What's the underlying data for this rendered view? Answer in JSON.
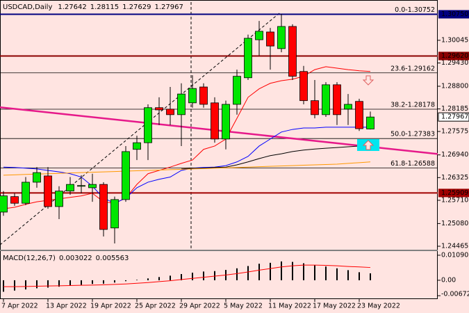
{
  "chart_data": [
    {
      "type": "candlestick",
      "title": "USDCAD,Daily",
      "categories": [
        "7 Apr 2022",
        null,
        null,
        null,
        "13 Apr 2022",
        null,
        null,
        null,
        "19 Apr 2022",
        null,
        null,
        null,
        "25 Apr 2022",
        null,
        null,
        null,
        "29 Apr 2022",
        null,
        null,
        null,
        "5 May 2022",
        null,
        null,
        null,
        "11 May 2022",
        null,
        null,
        null,
        "17 May 2022",
        null,
        null,
        null,
        "23 May 2022",
        null
      ],
      "open": [
        1.2539,
        1.2581,
        1.2563,
        1.262,
        1.2637,
        1.2554,
        1.2596,
        1.2609,
        1.2605,
        1.2614,
        1.2496,
        1.2573,
        1.2709,
        1.2727,
        1.2822,
        1.2818,
        1.2803,
        1.2835,
        1.2878,
        1.2835,
        1.2737,
        1.2831,
        1.2903,
        1.3006,
        1.3027,
        1.2982,
        1.3042,
        1.292,
        1.2841,
        1.2803,
        1.2884,
        1.2818,
        1.2839,
        1.27642
      ],
      "high": [
        1.2596,
        1.259,
        1.2634,
        1.2661,
        1.2661,
        1.2609,
        1.2634,
        1.2639,
        1.2643,
        1.262,
        1.2581,
        1.2718,
        1.2746,
        1.2831,
        1.285,
        1.2878,
        1.2888,
        1.291,
        1.2888,
        1.285,
        1.2841,
        1.2925,
        1.302,
        1.3057,
        1.3038,
        1.3076,
        1.3048,
        1.2935,
        1.2897,
        1.2891,
        1.2891,
        1.2859,
        1.2846,
        1.28115
      ],
      "low": [
        1.2529,
        1.2556,
        1.2558,
        1.2605,
        1.2548,
        1.252,
        1.2586,
        1.259,
        1.2567,
        1.2473,
        1.2454,
        1.2567,
        1.268,
        1.268,
        1.2775,
        1.2775,
        1.2718,
        1.2822,
        1.2822,
        1.2727,
        1.2709,
        1.2803,
        1.2897,
        1.2963,
        1.2925,
        1.2972,
        1.2897,
        1.2831,
        1.2793,
        1.2797,
        1.2775,
        1.2775,
        1.2759,
        1.27629
      ],
      "close": [
        1.2583,
        1.2563,
        1.262,
        1.2646,
        1.2554,
        1.2596,
        1.2614,
        1.2611,
        1.2614,
        1.2492,
        1.2573,
        1.2703,
        1.2727,
        1.2822,
        1.2816,
        1.2803,
        1.2859,
        1.2874,
        1.2831,
        1.2737,
        1.2831,
        1.2907,
        1.301,
        1.3029,
        1.2989,
        1.3042,
        1.2907,
        1.2841,
        1.2803,
        1.2884,
        1.2803,
        1.2831,
        1.2765,
        1.27967
      ],
      "up_color": "#00e600",
      "down_color": "#ff0000",
      "lines": [
        {
          "color": "#ff0000",
          "values": [
            1.2548,
            1.2552,
            1.256,
            1.2567,
            1.2571,
            1.2575,
            1.2579,
            1.2583,
            1.259,
            1.2567,
            1.2563,
            1.2577,
            1.2614,
            1.2643,
            1.2652,
            1.2661,
            1.2671,
            1.268,
            1.2709,
            1.2718,
            1.2737,
            1.2793,
            1.285,
            1.2873,
            1.2888,
            1.2895,
            1.2899,
            1.2907,
            1.2925,
            1.2933,
            1.2929,
            1.2925,
            1.2922,
            1.292
          ]
        },
        {
          "color": "#0000ff",
          "values": [
            1.2661,
            1.266,
            1.2658,
            1.2656,
            1.2652,
            1.2648,
            1.2643,
            1.2634,
            1.2609,
            1.2577,
            1.2563,
            1.2577,
            1.2605,
            1.262,
            1.2628,
            1.2634,
            1.2652,
            1.2658,
            1.266,
            1.2661,
            1.2665,
            1.2675,
            1.269,
            1.2718,
            1.2737,
            1.2756,
            1.2763,
            1.2767,
            1.2767,
            1.2769,
            1.2769,
            1.2769,
            1.2769,
            1.2769
          ]
        },
        {
          "color": "#000000",
          "values": [
            null,
            null,
            null,
            null,
            null,
            null,
            null,
            null,
            null,
            null,
            null,
            null,
            null,
            null,
            null,
            null,
            1.2656,
            1.2658,
            1.2658,
            1.266,
            1.2661,
            1.2667,
            1.2675,
            1.2684,
            1.2692,
            1.2697,
            1.2703,
            1.2707,
            1.271,
            1.2712,
            1.2714,
            1.2716,
            1.2718,
            1.2718
          ]
        },
        {
          "color": "#ff9900",
          "values": [
            1.2639,
            1.264,
            1.2641,
            1.2642,
            1.2643,
            1.2644,
            1.2645,
            1.2646,
            1.2647,
            1.2648,
            1.2649,
            1.265,
            1.2651,
            1.2652,
            1.2653,
            1.2654,
            1.2655,
            1.2656,
            1.2657,
            1.2658,
            1.2659,
            1.266,
            1.2661,
            1.2662,
            1.2663,
            1.2664,
            1.2665,
            1.2666,
            1.2667,
            1.2668,
            1.2669,
            1.2671,
            1.2673,
            1.2675
          ]
        }
      ],
      "trendline": {
        "color": "#e6198a",
        "from": 1.2822,
        "to": 1.2716
      },
      "levels": [
        {
          "value": 1.3075,
          "label": "1.30750",
          "color": "#000080"
        },
        {
          "value": 1.2962,
          "label": "1.29620",
          "color": "#8b0000"
        },
        {
          "value": 1.25909,
          "color": "#a00000"
        }
      ],
      "fib_levels": [
        {
          "value": 1.30752,
          "label": "0.0-1.30752"
        },
        {
          "value": 1.29162,
          "label": "23.6-1.29162"
        },
        {
          "value": 1.28178,
          "label": "38.2-1.28178"
        },
        {
          "value": 1.27383,
          "label": "50.0-1.27383"
        },
        {
          "value": 1.26588,
          "label": "61.8-1.26588"
        }
      ],
      "ylim": [
        1.2439,
        1.3108
      ],
      "yticks": [
        {
          "value": 1.30045,
          "label": "1.30045"
        },
        {
          "value": 1.2943,
          "label": "1.29430"
        },
        {
          "value": 1.288,
          "label": "1.28800"
        },
        1.28185,
        1.27575,
        {
          "value": 1.2694,
          "label": "1.26940"
        },
        1.26325,
        {
          "value": 1.2571,
          "label": "1.25710"
        },
        {
          "value": 1.2508,
          "label": "1.25080"
        },
        1.24465
      ]
    },
    {
      "type": "macd",
      "title": "MACD(12,26,7)",
      "series": [
        {
          "color": "#000000",
          "values": [
            -0.005,
            -0.0045,
            -0.004,
            -0.0035,
            -0.0032,
            -0.0028,
            -0.0024,
            -0.002,
            -0.0016,
            -0.0015,
            -0.001,
            -0.0004,
            0.0002,
            0.0008,
            0.0014,
            0.002,
            0.0027,
            0.0033,
            0.0038,
            0.004,
            0.0045,
            0.0052,
            0.0062,
            0.0072,
            0.0076,
            0.0082,
            0.008,
            0.0074,
            0.0066,
            0.006,
            0.0052,
            0.0044,
            0.0035,
            0.003022
          ]
        },
        {
          "color": "#ff0000",
          "values": [
            -0.0028,
            -0.0028,
            -0.0027,
            -0.0026,
            -0.0025,
            -0.0024,
            -0.0023,
            -0.0022,
            -0.0021,
            -0.002,
            -0.0018,
            -0.0016,
            -0.0013,
            -0.001,
            -0.0006,
            -0.0002,
            0.0003,
            0.0008,
            0.0013,
            0.0018,
            0.0023,
            0.0029,
            0.0036,
            0.0044,
            0.0051,
            0.0058,
            0.0063,
            0.0066,
            0.0066,
            0.0065,
            0.0063,
            0.006,
            0.0058,
            0.005563
          ]
        }
      ],
      "ylim": [
        -0.0076,
        0.0124
      ],
      "yticks": [
        0.010902,
        {
          "value": 0,
          "label": "0.00"
        },
        -0.006725
      ]
    }
  ]
}
